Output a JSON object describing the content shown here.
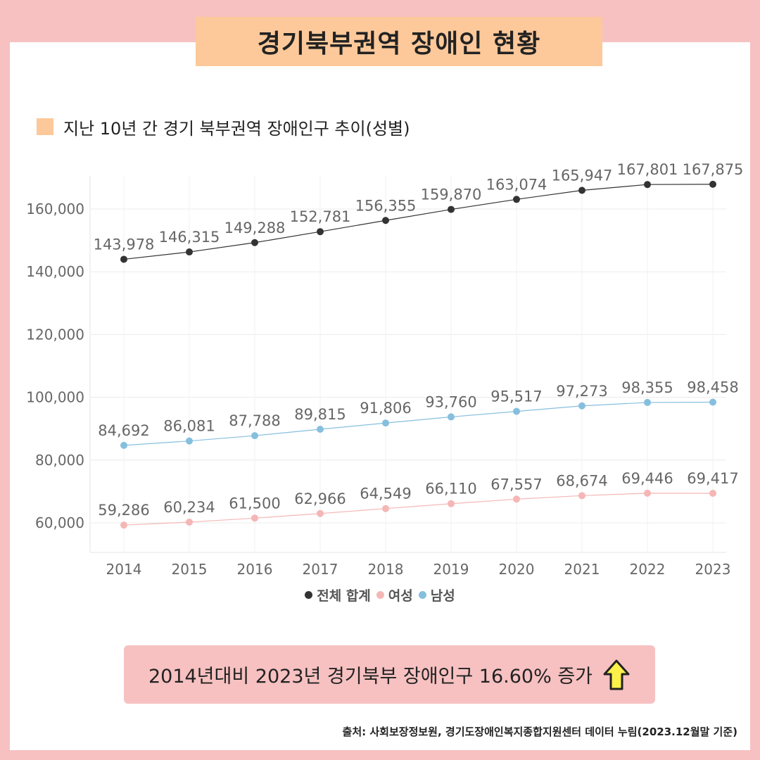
{
  "title": "경기북부권역 장애인 현황",
  "subtitle": "지난 10년 간 경기 북부권역 장애인구 추이(성별)",
  "summary": "2014년대비 2023년 경기북부 장애인구 16.60% 증가",
  "summary_icon": "arrow-up-icon",
  "source": "출처: 사회보장정보원, 경기도장애인복지종합지원센터 데이터 누림(2023.12월말 기준)",
  "colors": {
    "background": "#f7c1c1",
    "title_box": "#fdc99a",
    "total": "#333333",
    "female": "#f5b6b6",
    "male": "#86bfde",
    "arrow_fill": "#fdf04a"
  },
  "chart_data": {
    "type": "line",
    "title": "",
    "xlabel": "",
    "ylabel": "",
    "categories": [
      "2014",
      "2015",
      "2016",
      "2017",
      "2018",
      "2019",
      "2020",
      "2021",
      "2022",
      "2023"
    ],
    "ylim": [
      50000,
      170000
    ],
    "yticks": [
      60000,
      80000,
      100000,
      120000,
      140000,
      160000
    ],
    "ytick_labels": [
      "60,000",
      "80,000",
      "100,000",
      "120,000",
      "140,000",
      "160,000"
    ],
    "grid": true,
    "legend_position": "bottom",
    "series": [
      {
        "name": "전체 합계",
        "color": "#333333",
        "values": [
          143978,
          146315,
          149288,
          152781,
          156355,
          159870,
          163074,
          165947,
          167801,
          167875
        ],
        "labels": [
          "143,978",
          "146,315",
          "149,288",
          "152,781",
          "156,355",
          "159,870",
          "163,074",
          "165,947",
          "167,801",
          "167,875"
        ]
      },
      {
        "name": "여성",
        "color": "#f5b6b6",
        "values": [
          59286,
          60234,
          61500,
          62966,
          64549,
          66110,
          67557,
          68674,
          69446,
          69417
        ],
        "labels": [
          "59,286",
          "60,234",
          "61,500",
          "62,966",
          "64,549",
          "66,110",
          "67,557",
          "68,674",
          "69,446",
          "69,417"
        ]
      },
      {
        "name": "남성",
        "color": "#86bfde",
        "values": [
          84692,
          86081,
          87788,
          89815,
          91806,
          93760,
          95517,
          97273,
          98355,
          98458
        ],
        "labels": [
          "84,692",
          "86,081",
          "87,788",
          "89,815",
          "91,806",
          "93,760",
          "95,517",
          "97,273",
          "98,355",
          "98,458"
        ]
      }
    ]
  }
}
